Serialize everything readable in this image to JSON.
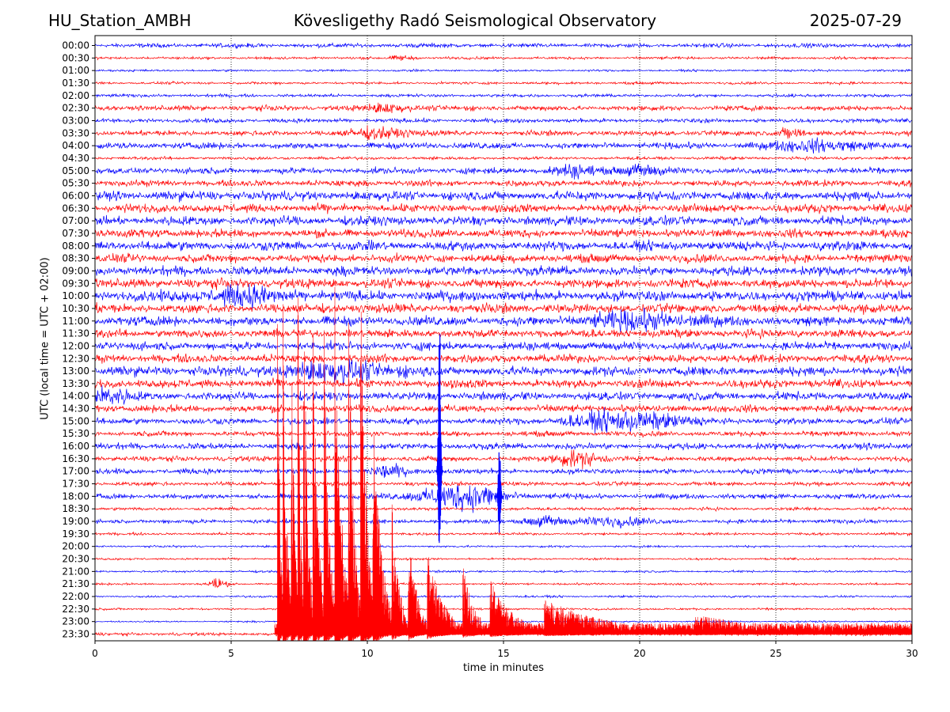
{
  "header": {
    "station": "HU_Station_AMBH",
    "observatory": "Kövesligethy Radó Seismological Observatory",
    "date": "2025-07-29"
  },
  "chart_data": {
    "type": "line",
    "title": "Kövesligethy Radó Seismological Observatory",
    "xlabel": "time in minutes",
    "ylabel": "UTC (local time = UTC + 02:00)",
    "xlim": [
      0,
      30
    ],
    "x_ticks": [
      0,
      5,
      10,
      15,
      20,
      25,
      30
    ],
    "y_tick_labels": [
      "00:00",
      "00:30",
      "01:00",
      "01:30",
      "02:00",
      "02:30",
      "03:00",
      "03:30",
      "04:00",
      "04:30",
      "05:00",
      "05:30",
      "06:00",
      "06:30",
      "07:00",
      "07:30",
      "08:00",
      "08:30",
      "09:00",
      "09:30",
      "10:00",
      "10:30",
      "11:00",
      "11:30",
      "12:00",
      "12:30",
      "13:00",
      "13:30",
      "14:00",
      "14:30",
      "15:00",
      "15:30",
      "16:00",
      "16:30",
      "17:00",
      "17:30",
      "18:00",
      "18:30",
      "19:00",
      "19:30",
      "20:00",
      "20:30",
      "21:00",
      "21:30",
      "22:00",
      "22:30",
      "23:00",
      "23:30"
    ],
    "grid": "vertical dotted at x ticks",
    "colors": {
      "even_rows": "#0000ff",
      "odd_rows": "#ff0000"
    },
    "trace_amplitude": [
      4,
      2.5,
      2,
      2.5,
      3,
      5,
      4,
      5,
      6,
      3,
      6,
      6,
      9,
      8,
      9,
      8,
      9,
      8,
      9,
      9,
      10,
      9,
      9,
      8,
      8,
      8,
      9,
      8,
      8,
      7,
      6,
      5,
      6,
      5,
      5,
      4,
      5,
      3,
      4,
      2.5,
      2,
      2,
      2,
      2,
      2,
      2,
      1.5,
      3
    ],
    "events": [
      {
        "row": "00:30",
        "t": 11.3,
        "amp": 4,
        "width": 0.4
      },
      {
        "row": "02:30",
        "t": 10.8,
        "amp": 7,
        "width": 0.8
      },
      {
        "row": "03:30",
        "t": 10.5,
        "amp": 8,
        "width": 1.2
      },
      {
        "row": "03:30",
        "t": 25.5,
        "amp": 10,
        "width": 0.4
      },
      {
        "row": "04:00",
        "t": 26.5,
        "amp": 9,
        "width": 1.5
      },
      {
        "row": "05:00",
        "t": 17.5,
        "amp": 9,
        "width": 0.8
      },
      {
        "row": "05:00",
        "t": 20,
        "amp": 9,
        "width": 0.8
      },
      {
        "row": "10:00",
        "t": 5.5,
        "amp": 12,
        "width": 1.5
      },
      {
        "row": "11:00",
        "t": 20,
        "amp": 12,
        "width": 2
      },
      {
        "row": "13:00",
        "t": 9,
        "amp": 14,
        "width": 2
      },
      {
        "row": "14:00",
        "t": 0.5,
        "amp": 12,
        "width": 0.8
      },
      {
        "row": "15:00",
        "t": 19.5,
        "amp": 16,
        "width": 2
      },
      {
        "row": "16:30",
        "t": 17.7,
        "amp": 14,
        "width": 0.8
      },
      {
        "row": "17:00",
        "t": 10.8,
        "amp": 10,
        "width": 0.6
      },
      {
        "row": "18:00",
        "t": 13.5,
        "amp": 22,
        "width": 1.5
      },
      {
        "row": "19:00",
        "t": 16.5,
        "amp": 8,
        "width": 0.7
      },
      {
        "row": "19:00",
        "t": 19,
        "amp": 8,
        "width": 1.2
      },
      {
        "row": "21:30",
        "t": 4.5,
        "amp": 12,
        "width": 0.3
      }
    ],
    "spikes": [
      {
        "row": "17:00",
        "t": 12.65,
        "up": 190,
        "down": 120
      },
      {
        "row": "18:00",
        "t": 14.85,
        "up": 70,
        "down": 60
      }
    ],
    "swarm": {
      "row": "23:30",
      "t_start": 6.6,
      "t_end": 30,
      "peaks": [
        {
          "t": 6.7,
          "up": 470
        },
        {
          "t": 6.9,
          "up": 460
        },
        {
          "t": 7.2,
          "up": 470
        },
        {
          "t": 7.45,
          "up": 510
        },
        {
          "t": 7.65,
          "up": 480
        },
        {
          "t": 8.0,
          "up": 450
        },
        {
          "t": 8.4,
          "up": 430
        },
        {
          "t": 8.8,
          "up": 480
        },
        {
          "t": 9.3,
          "up": 440
        },
        {
          "t": 9.75,
          "up": 520
        },
        {
          "t": 10.2,
          "up": 300
        },
        {
          "t": 10.9,
          "up": 170
        },
        {
          "t": 11.5,
          "up": 150
        },
        {
          "t": 12.2,
          "up": 110
        },
        {
          "t": 13.5,
          "up": 90
        },
        {
          "t": 14.5,
          "up": 70
        },
        {
          "t": 16.5,
          "up": 45
        },
        {
          "t": 22,
          "up": 25
        }
      ]
    }
  }
}
